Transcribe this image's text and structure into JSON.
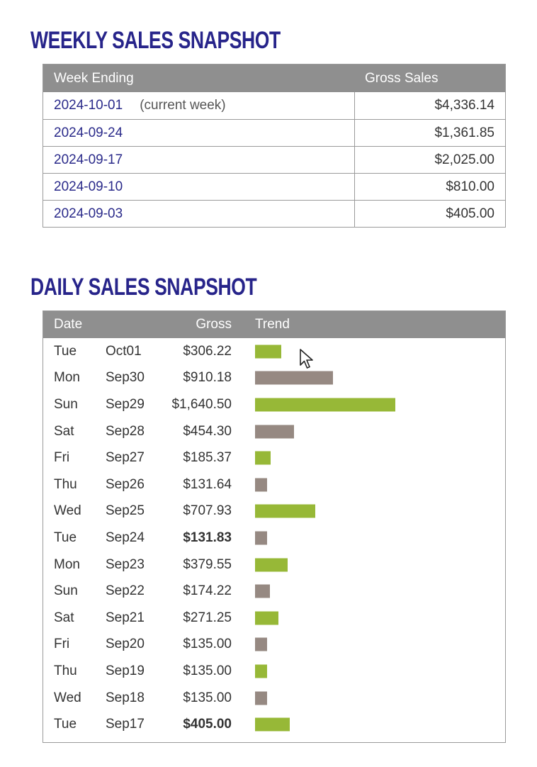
{
  "weekly": {
    "title": "WEEKLY SALES SNAPSHOT",
    "headers": [
      "Week Ending",
      "Gross Sales"
    ],
    "rows": [
      {
        "week": "2024-10-01",
        "note": "(current week)",
        "gross": "$4,336.14"
      },
      {
        "week": "2024-09-24",
        "note": "",
        "gross": "$1,361.85"
      },
      {
        "week": "2024-09-17",
        "note": "",
        "gross": "$2,025.00"
      },
      {
        "week": "2024-09-10",
        "note": "",
        "gross": "$810.00"
      },
      {
        "week": "2024-09-03",
        "note": "",
        "gross": "$405.00"
      }
    ]
  },
  "daily": {
    "title": "DAILY SALES SNAPSHOT",
    "headers": [
      "Date",
      "Gross",
      "Trend"
    ],
    "colors": {
      "up": "#97b837",
      "down": "#968982"
    },
    "rows": [
      {
        "day": "Tue",
        "date": "Oct01",
        "gross": "$306.22",
        "value": 306.22,
        "bold": false,
        "trend": "up"
      },
      {
        "day": "Mon",
        "date": "Sep30",
        "gross": "$910.18",
        "value": 910.18,
        "bold": false,
        "trend": "down"
      },
      {
        "day": "Sun",
        "date": "Sep29",
        "gross": "$1,640.50",
        "value": 1640.5,
        "bold": false,
        "trend": "up"
      },
      {
        "day": "Sat",
        "date": "Sep28",
        "gross": "$454.30",
        "value": 454.3,
        "bold": false,
        "trend": "down"
      },
      {
        "day": "Fri",
        "date": "Sep27",
        "gross": "$185.37",
        "value": 185.37,
        "bold": false,
        "trend": "up"
      },
      {
        "day": "Thu",
        "date": "Sep26",
        "gross": "$131.64",
        "value": 131.64,
        "bold": false,
        "trend": "down"
      },
      {
        "day": "Wed",
        "date": "Sep25",
        "gross": "$707.93",
        "value": 707.93,
        "bold": false,
        "trend": "up"
      },
      {
        "day": "Tue",
        "date": "Sep24",
        "gross": "$131.83",
        "value": 131.83,
        "bold": true,
        "trend": "down"
      },
      {
        "day": "Mon",
        "date": "Sep23",
        "gross": "$379.55",
        "value": 379.55,
        "bold": false,
        "trend": "up"
      },
      {
        "day": "Sun",
        "date": "Sep22",
        "gross": "$174.22",
        "value": 174.22,
        "bold": false,
        "trend": "down"
      },
      {
        "day": "Sat",
        "date": "Sep21",
        "gross": "$271.25",
        "value": 271.25,
        "bold": false,
        "trend": "up"
      },
      {
        "day": "Fri",
        "date": "Sep20",
        "gross": "$135.00",
        "value": 135.0,
        "bold": false,
        "trend": "down"
      },
      {
        "day": "Thu",
        "date": "Sep19",
        "gross": "$135.00",
        "value": 135.0,
        "bold": false,
        "trend": "up"
      },
      {
        "day": "Wed",
        "date": "Sep18",
        "gross": "$135.00",
        "value": 135.0,
        "bold": false,
        "trend": "down"
      },
      {
        "day": "Tue",
        "date": "Sep17",
        "gross": "$405.00",
        "value": 405.0,
        "bold": true,
        "trend": "up"
      }
    ]
  }
}
